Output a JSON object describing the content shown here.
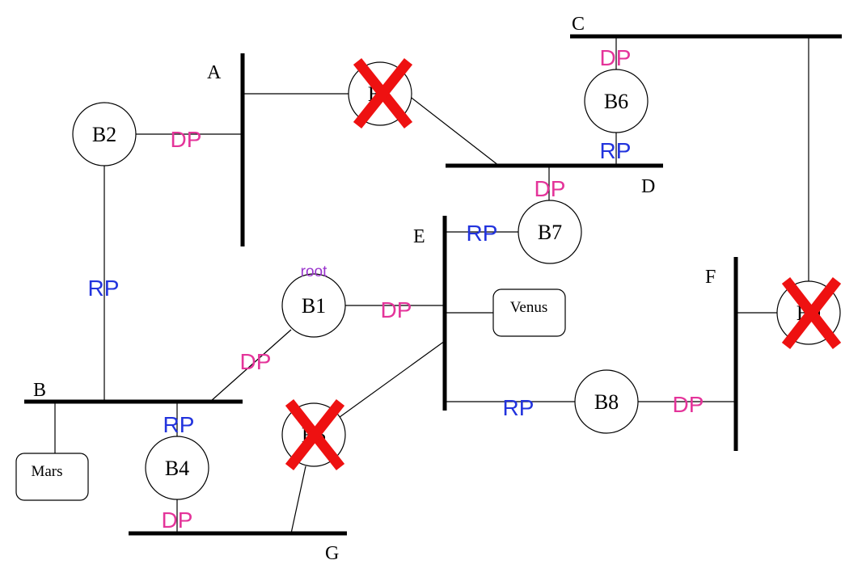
{
  "colors": {
    "rp": "#2233dd",
    "dp": "#e4349a",
    "root": "#9933cc",
    "cross": "#ee1111",
    "line": "#000000"
  },
  "segments": {
    "A": "A",
    "B": "B",
    "C": "C",
    "D": "D",
    "E": "E",
    "F": "F",
    "G": "G"
  },
  "bridges": {
    "b1": "B1",
    "b2": "B2",
    "b3": "B3",
    "b4": "B4",
    "b5": "B5",
    "b6": "B6",
    "b7": "B7",
    "b8": "B8",
    "b9": "B9"
  },
  "hosts": {
    "venus": "Venus",
    "mars": "Mars"
  },
  "ports": {
    "rp": "RP",
    "dp": "DP"
  },
  "root_text": "root",
  "disabled_bridges": [
    "B3",
    "B5",
    "B9"
  ]
}
